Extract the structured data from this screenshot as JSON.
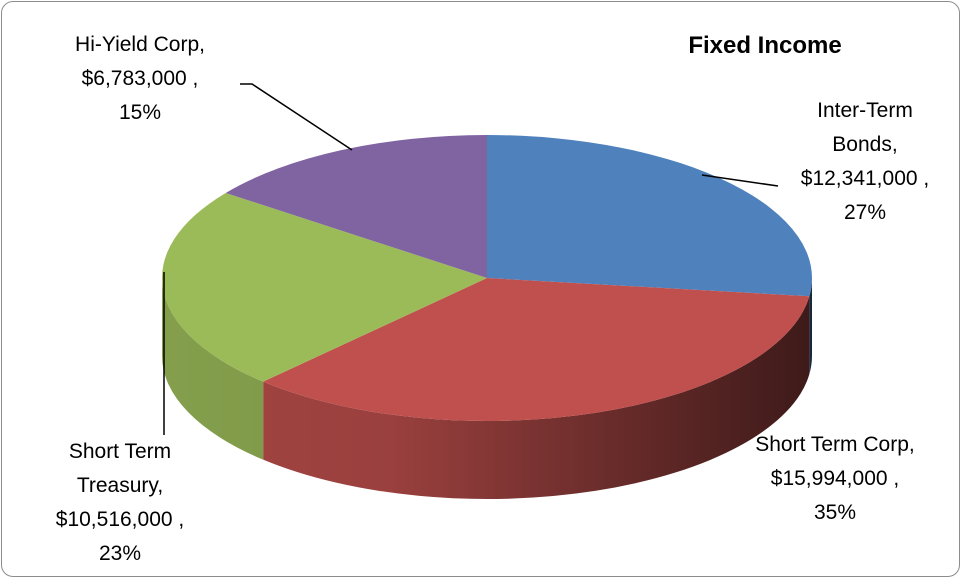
{
  "chart_data": {
    "type": "pie3d",
    "title": "Fixed Income",
    "categories": [
      "Inter-Term Bonds",
      "Short Term Corp",
      "Short Term Treasury",
      "Hi-Yield Corp"
    ],
    "values": [
      12341000,
      15994000,
      10516000,
      6783000
    ],
    "value_labels": [
      "$12,341,000 ,",
      "$15,994,000 ,",
      "$10,516,000 ,",
      "$6,783,000 ,"
    ],
    "percents": [
      27,
      35,
      23,
      15
    ],
    "percent_labels": [
      "27%",
      "35%",
      "23%",
      "15%"
    ],
    "label_separator": ",",
    "colors": [
      "#4f81bd",
      "#c0504d",
      "#9bbb59",
      "#8064a2"
    ]
  }
}
